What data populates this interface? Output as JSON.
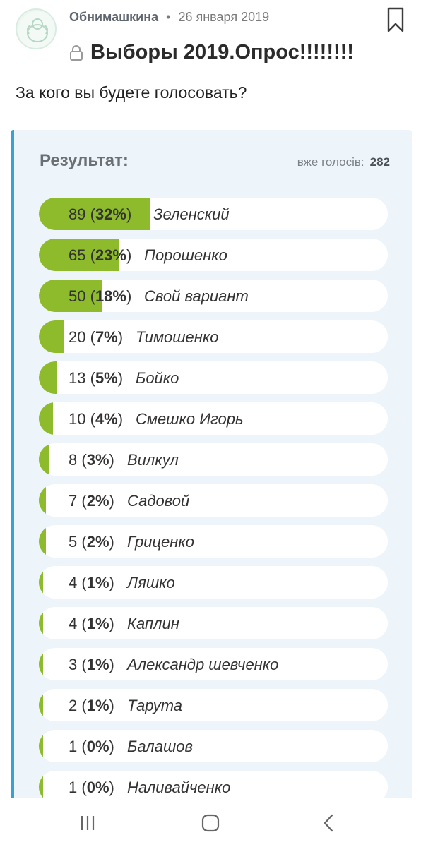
{
  "post": {
    "author": "Обнимашкина",
    "separator": "•",
    "date": "26 января 2019",
    "title": "Выборы 2019.Опрос!!!!!!!!",
    "question": "За кого вы будете голосовать?"
  },
  "poll": {
    "results_label": "Результат:",
    "votes_label": "вже голосів:",
    "votes_total": "282",
    "accent_color": "#8dbb2c",
    "options": [
      {
        "count": "89",
        "percent": "32%",
        "name": "Зеленский",
        "share": 0.32
      },
      {
        "count": "65",
        "percent": "23%",
        "name": "Порошенко",
        "share": 0.23
      },
      {
        "count": "50",
        "percent": "18%",
        "name": "Свой вариант",
        "share": 0.18
      },
      {
        "count": "20",
        "percent": "7%",
        "name": "Тимошенко",
        "share": 0.07
      },
      {
        "count": "13",
        "percent": "5%",
        "name": "Бойко",
        "share": 0.05
      },
      {
        "count": "10",
        "percent": "4%",
        "name": "Смешко Игорь",
        "share": 0.04
      },
      {
        "count": "8",
        "percent": "3%",
        "name": "Вилкул",
        "share": 0.03
      },
      {
        "count": "7",
        "percent": "2%",
        "name": "Садовой",
        "share": 0.02
      },
      {
        "count": "5",
        "percent": "2%",
        "name": "Гриценко",
        "share": 0.02
      },
      {
        "count": "4",
        "percent": "1%",
        "name": "Ляшко",
        "share": 0.01
      },
      {
        "count": "4",
        "percent": "1%",
        "name": "Каплин",
        "share": 0.01
      },
      {
        "count": "3",
        "percent": "1%",
        "name": "Александр шевченко",
        "share": 0.01
      },
      {
        "count": "2",
        "percent": "1%",
        "name": "Тарута",
        "share": 0.01
      },
      {
        "count": "1",
        "percent": "0%",
        "name": "Балашов",
        "share": 0.0
      },
      {
        "count": "1",
        "percent": "0%",
        "name": "Наливайченко",
        "share": 0.0
      }
    ]
  },
  "icons": {
    "bookmark": "bookmark-icon",
    "lock": "lock-icon",
    "recents": "recents-icon",
    "home": "home-icon",
    "back": "back-icon"
  }
}
